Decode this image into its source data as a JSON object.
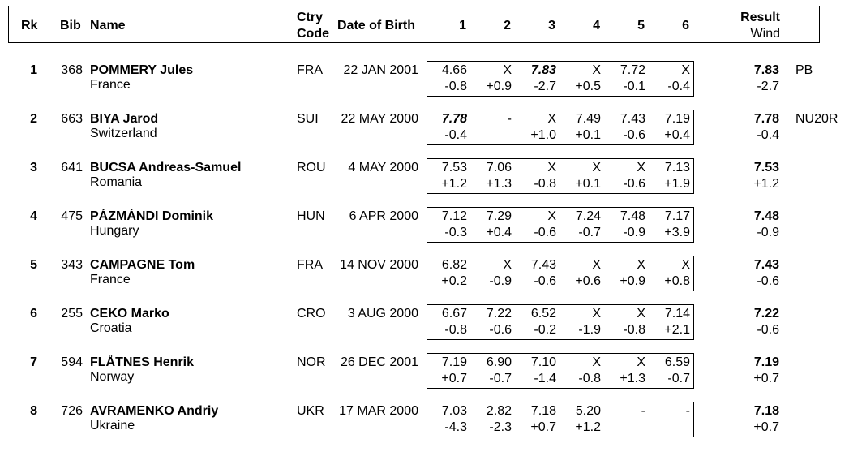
{
  "header": {
    "rank": "Rk",
    "bib": "Bib",
    "name": "Name",
    "ctry_line1": "Ctry",
    "ctry_line2": "Code",
    "dob": "Date of Birth",
    "attempts": [
      "1",
      "2",
      "3",
      "4",
      "5",
      "6"
    ],
    "result_line1": "Result",
    "result_line2": "Wind"
  },
  "rows": [
    {
      "rank": "1",
      "bib": "368",
      "name": "POMMERY Jules",
      "country": "France",
      "code": "FRA",
      "dob": "22 JAN 2001",
      "marks": [
        "4.66",
        "X",
        "7.83",
        "X",
        "7.72",
        "X"
      ],
      "winds": [
        "-0.8",
        "+0.9",
        "-2.7",
        "+0.5",
        "-0.1",
        "-0.4"
      ],
      "best_index": 2,
      "result": "7.83",
      "result_wind": "-2.7",
      "note": "PB"
    },
    {
      "rank": "2",
      "bib": "663",
      "name": "BIYA Jarod",
      "country": "Switzerland",
      "code": "SUI",
      "dob": "22 MAY 2000",
      "marks": [
        "7.78",
        "-",
        "X",
        "7.49",
        "7.43",
        "7.19"
      ],
      "winds": [
        "-0.4",
        "",
        "+1.0",
        "+0.1",
        "-0.6",
        "+0.4"
      ],
      "best_index": 0,
      "result": "7.78",
      "result_wind": "-0.4",
      "note": "NU20R"
    },
    {
      "rank": "3",
      "bib": "641",
      "name": "BUCSA Andreas-Samuel",
      "country": "Romania",
      "code": "ROU",
      "dob": "4 MAY 2000",
      "marks": [
        "7.53",
        "7.06",
        "X",
        "X",
        "X",
        "7.13"
      ],
      "winds": [
        "+1.2",
        "+1.3",
        "-0.8",
        "+0.1",
        "-0.6",
        "+1.9"
      ],
      "best_index": -1,
      "result": "7.53",
      "result_wind": "+1.2",
      "note": ""
    },
    {
      "rank": "4",
      "bib": "475",
      "name": "PÁZMÁNDI Dominik",
      "country": "Hungary",
      "code": "HUN",
      "dob": "6 APR 2000",
      "marks": [
        "7.12",
        "7.29",
        "X",
        "7.24",
        "7.48",
        "7.17"
      ],
      "winds": [
        "-0.3",
        "+0.4",
        "-0.6",
        "-0.7",
        "-0.9",
        "+3.9"
      ],
      "best_index": -1,
      "result": "7.48",
      "result_wind": "-0.9",
      "note": ""
    },
    {
      "rank": "5",
      "bib": "343",
      "name": "CAMPAGNE Tom",
      "country": "France",
      "code": "FRA",
      "dob": "14 NOV 2000",
      "marks": [
        "6.82",
        "X",
        "7.43",
        "X",
        "X",
        "X"
      ],
      "winds": [
        "+0.2",
        "-0.9",
        "-0.6",
        "+0.6",
        "+0.9",
        "+0.8"
      ],
      "best_index": -1,
      "result": "7.43",
      "result_wind": "-0.6",
      "note": ""
    },
    {
      "rank": "6",
      "bib": "255",
      "name": "CEKO Marko",
      "country": "Croatia",
      "code": "CRO",
      "dob": "3 AUG 2000",
      "marks": [
        "6.67",
        "7.22",
        "6.52",
        "X",
        "X",
        "7.14"
      ],
      "winds": [
        "-0.8",
        "-0.6",
        "-0.2",
        "-1.9",
        "-0.8",
        "+2.1"
      ],
      "best_index": -1,
      "result": "7.22",
      "result_wind": "-0.6",
      "note": ""
    },
    {
      "rank": "7",
      "bib": "594",
      "name": "FLÅTNES Henrik",
      "country": "Norway",
      "code": "NOR",
      "dob": "26 DEC 2001",
      "marks": [
        "7.19",
        "6.90",
        "7.10",
        "X",
        "X",
        "6.59"
      ],
      "winds": [
        "+0.7",
        "-0.7",
        "-1.4",
        "-0.8",
        "+1.3",
        "-0.7"
      ],
      "best_index": -1,
      "result": "7.19",
      "result_wind": "+0.7",
      "note": ""
    },
    {
      "rank": "8",
      "bib": "726",
      "name": "AVRAMENKO Andriy",
      "country": "Ukraine",
      "code": "UKR",
      "dob": "17 MAR 2000",
      "marks": [
        "7.03",
        "2.82",
        "7.18",
        "5.20",
        "-",
        "-"
      ],
      "winds": [
        "-4.3",
        "-2.3",
        "+0.7",
        "+1.2",
        "",
        ""
      ],
      "best_index": -1,
      "result": "7.18",
      "result_wind": "+0.7",
      "note": ""
    }
  ]
}
